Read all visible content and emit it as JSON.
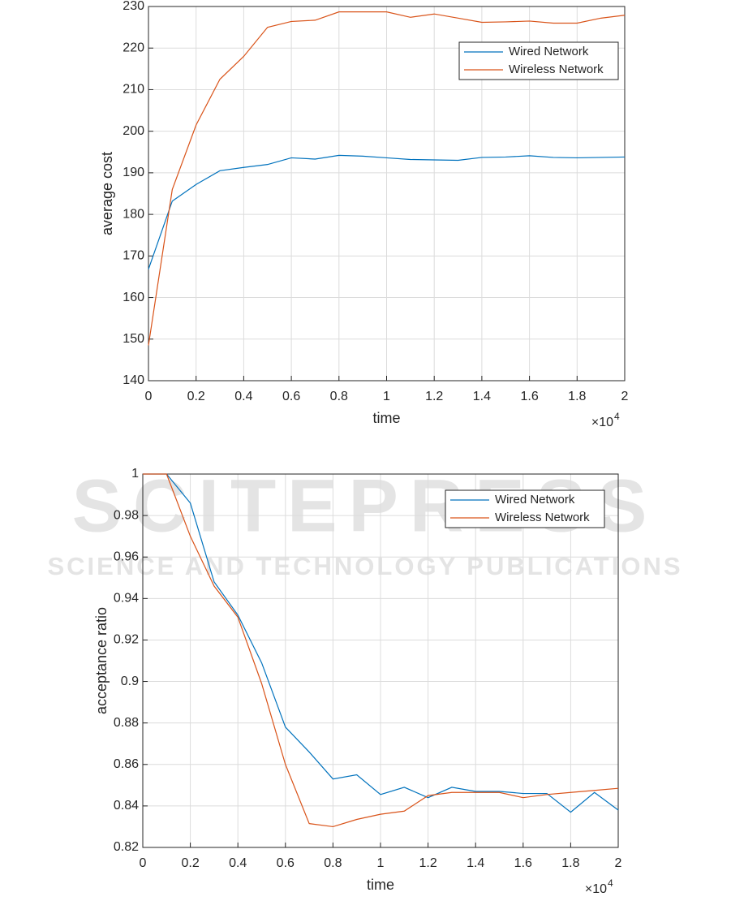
{
  "watermark": {
    "title": "SCITEPRESS",
    "subtitle": "SCIENCE AND TECHNOLOGY PUBLICATIONS"
  },
  "chart_data": [
    {
      "type": "line",
      "xlabel": "time",
      "ylabel": "average cost",
      "x_multiplier": {
        "base": "×10",
        "exponent": "4"
      },
      "x": [
        0,
        0.1,
        0.2,
        0.3,
        0.4,
        0.5,
        0.6,
        0.7,
        0.8,
        0.9,
        1,
        1.1,
        1.2,
        1.3,
        1.4,
        1.5,
        1.6,
        1.7,
        1.8,
        1.9,
        2
      ],
      "series": [
        {
          "name": "Wired Network",
          "color": "#0072bd",
          "values": [
            166.8,
            183.2,
            187.2,
            190.5,
            191.3,
            192.0,
            193.6,
            193.3,
            194.2,
            194.0,
            193.6,
            193.2,
            193.1,
            193.0,
            193.7,
            193.8,
            194.1,
            193.7,
            193.6,
            193.7,
            193.8
          ]
        },
        {
          "name": "Wireless Network",
          "color": "#d95319",
          "values": [
            148.5,
            186,
            201.5,
            212.5,
            218,
            225,
            226.4,
            226.7,
            228.7,
            228.7,
            228.7,
            227.4,
            228.2,
            227.2,
            226.2,
            226.3,
            226.5,
            226,
            226,
            227.2,
            227.9
          ]
        }
      ],
      "xlim": [
        0,
        2
      ],
      "xticks": [
        0,
        0.2,
        0.4,
        0.6,
        0.8,
        1,
        1.2,
        1.4,
        1.6,
        1.8,
        2
      ],
      "ylim": [
        140,
        230
      ],
      "yticks": [
        140,
        150,
        160,
        170,
        180,
        190,
        200,
        210,
        220,
        230
      ],
      "grid": true,
      "legend": "northeast"
    },
    {
      "type": "line",
      "xlabel": "time",
      "ylabel": "acceptance ratio",
      "x_multiplier": {
        "base": "×10",
        "exponent": "4"
      },
      "x": [
        0,
        0.1,
        0.2,
        0.3,
        0.4,
        0.5,
        0.6,
        0.7,
        0.8,
        0.9,
        1,
        1.1,
        1.2,
        1.3,
        1.4,
        1.5,
        1.6,
        1.7,
        1.8,
        1.9,
        2
      ],
      "series": [
        {
          "name": "Wired Network",
          "color": "#0072bd",
          "values": [
            1,
            1,
            0.986,
            0.948,
            0.932,
            0.909,
            0.878,
            0.866,
            0.853,
            0.855,
            0.8455,
            0.849,
            0.844,
            0.849,
            0.847,
            0.847,
            0.846,
            0.846,
            0.837,
            0.8465,
            0.838
          ]
        },
        {
          "name": "Wireless Network",
          "color": "#d95319",
          "values": [
            1,
            1,
            0.97,
            0.946,
            0.931,
            0.899,
            0.86,
            0.8315,
            0.83,
            0.8335,
            0.836,
            0.8375,
            0.845,
            0.8465,
            0.8465,
            0.8465,
            0.844,
            0.8455,
            0.8465,
            0.8475,
            0.8485
          ]
        }
      ],
      "xlim": [
        0,
        2
      ],
      "xticks": [
        0,
        0.2,
        0.4,
        0.6,
        0.8,
        1,
        1.2,
        1.4,
        1.6,
        1.8,
        2
      ],
      "ylim": [
        0.82,
        1
      ],
      "yticks": [
        0.82,
        0.84,
        0.86,
        0.88,
        0.9,
        0.92,
        0.94,
        0.96,
        0.98,
        1
      ],
      "grid": true,
      "legend": "northeast"
    }
  ]
}
